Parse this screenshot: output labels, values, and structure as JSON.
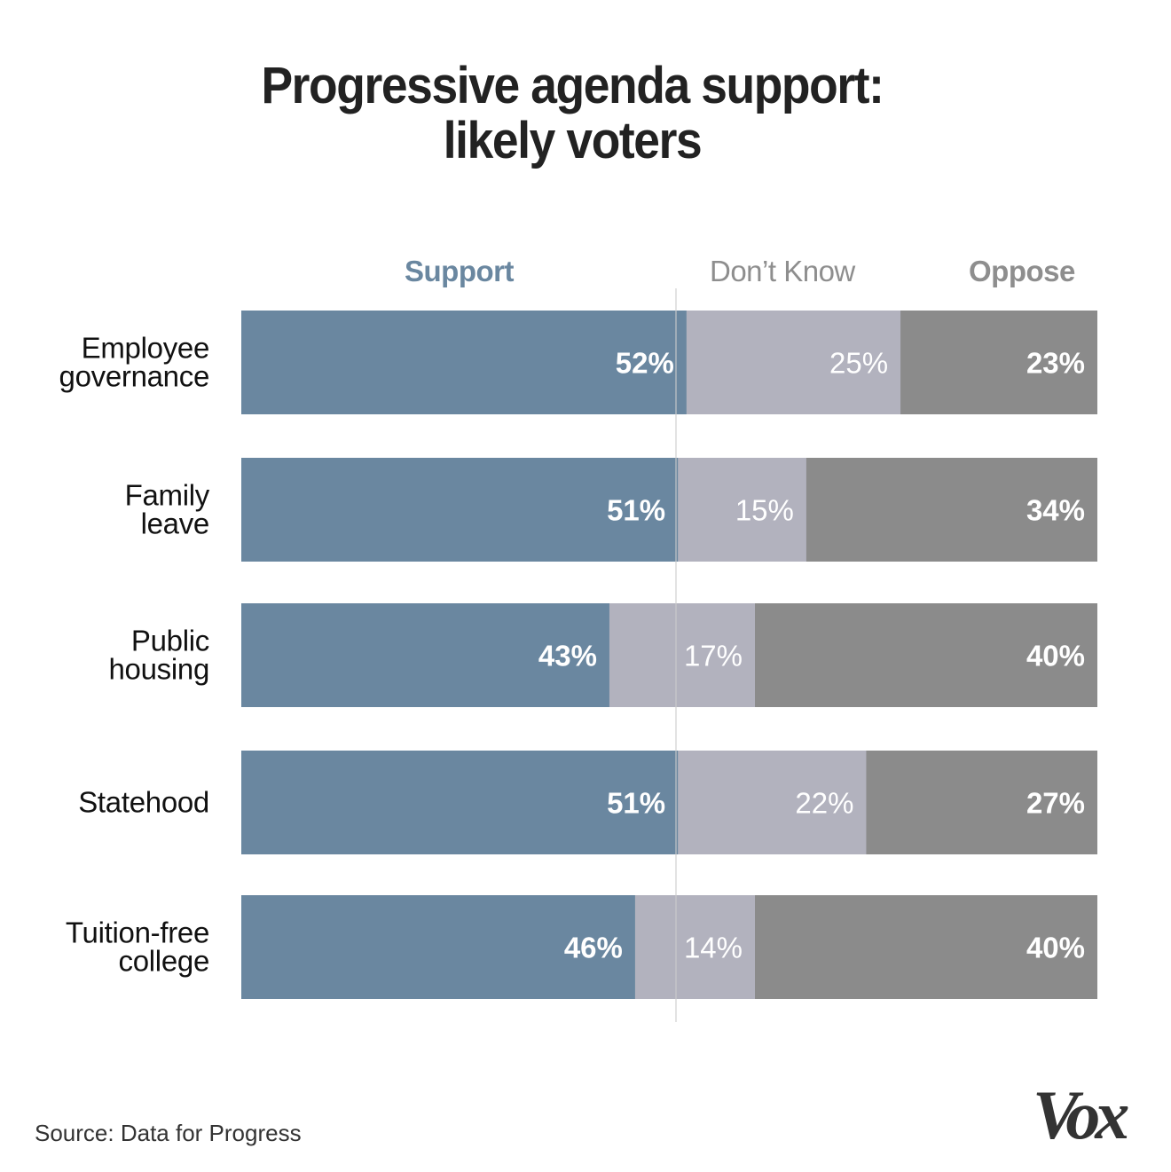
{
  "chart_data": {
    "type": "bar",
    "orientation": "horizontal",
    "stacked": true,
    "title": "Progressive agenda support: likely voters",
    "title_lines": [
      "Progressive agenda support:",
      "likely voters"
    ],
    "categories": [
      "Employee governance",
      "Family leave",
      "Public housing",
      "Statehood",
      "Tuition-free college"
    ],
    "category_label_lines": [
      [
        "Employee",
        "governance"
      ],
      [
        "Family",
        "leave"
      ],
      [
        "Public",
        "housing"
      ],
      [
        "Statehood"
      ],
      [
        "Tuition-free",
        "college"
      ]
    ],
    "series": [
      {
        "name": "Support",
        "values": [
          52,
          51,
          43,
          51,
          46
        ],
        "color": "#6a87a0",
        "label_weight": "bold"
      },
      {
        "name": "Don’t Know",
        "values": [
          25,
          15,
          17,
          22,
          14
        ],
        "color": "#b2b2be",
        "label_weight": "normal"
      },
      {
        "name": "Oppose",
        "values": [
          23,
          34,
          40,
          27,
          40
        ],
        "color": "#8b8b8b",
        "label_weight": "bold"
      }
    ],
    "value_suffix": "%",
    "xlim": [
      0,
      100
    ],
    "reference_line": 51,
    "reference_line_color": "#cccccc",
    "legend": [
      "Support",
      "Don’t Know",
      "Oppose"
    ],
    "legend_placement": "top",
    "xlabel": "",
    "ylabel": "",
    "grid": false
  },
  "header": {
    "title_line1": "Progressive agenda support:",
    "title_line2": "likely voters"
  },
  "legend": {
    "support": "Support",
    "dont_know": "Don’t Know",
    "oppose": "Oppose"
  },
  "footer": {
    "source": "Source: Data for Progress",
    "logo_text": "Vox"
  }
}
